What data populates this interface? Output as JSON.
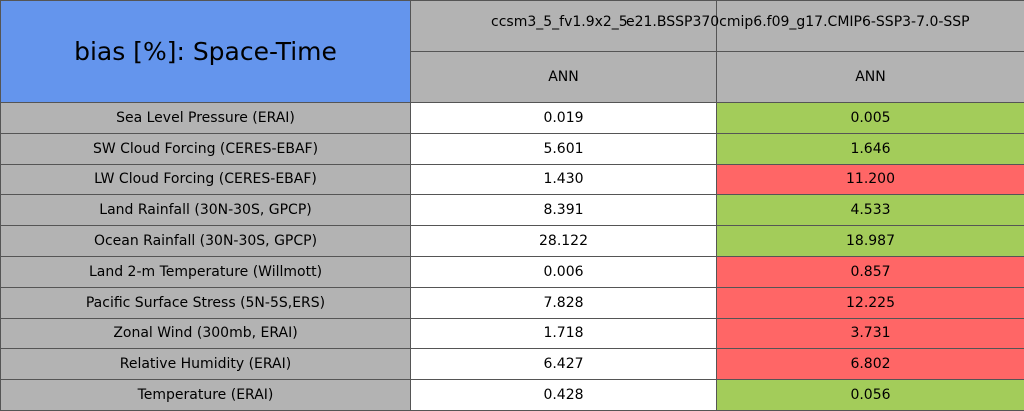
{
  "table": {
    "title": "bias [%]: Space-Time",
    "columns": [
      {
        "name": "ccsm3_5_fv1.9x2_5",
        "season": "ANN"
      },
      {
        "name": "e21.BSSP370cmip6.f09_g17.CMIP6-SSP3-7.0-SSP",
        "season": "ANN"
      }
    ],
    "rows": [
      {
        "label": "Sea Level Pressure (ERAI)",
        "cells": [
          "0.019",
          "0.005"
        ],
        "colors": [
          "#ffffff",
          "#a3cc5a"
        ]
      },
      {
        "label": "SW Cloud Forcing (CERES-EBAF)",
        "cells": [
          "5.601",
          "1.646"
        ],
        "colors": [
          "#ffffff",
          "#a3cc5a"
        ]
      },
      {
        "label": "LW Cloud Forcing (CERES-EBAF)",
        "cells": [
          "1.430",
          "11.200"
        ],
        "colors": [
          "#ffffff",
          "#ff6666"
        ]
      },
      {
        "label": "Land Rainfall (30N-30S, GPCP)",
        "cells": [
          "8.391",
          "4.533"
        ],
        "colors": [
          "#ffffff",
          "#a3cc5a"
        ]
      },
      {
        "label": "Ocean Rainfall (30N-30S, GPCP)",
        "cells": [
          "28.122",
          "18.987"
        ],
        "colors": [
          "#ffffff",
          "#a3cc5a"
        ]
      },
      {
        "label": "Land 2-m Temperature (Willmott)",
        "cells": [
          "0.006",
          "0.857"
        ],
        "colors": [
          "#ffffff",
          "#ff6666"
        ]
      },
      {
        "label": "Pacific Surface Stress (5N-5S,ERS)",
        "cells": [
          "7.828",
          "12.225"
        ],
        "colors": [
          "#ffffff",
          "#ff6666"
        ]
      },
      {
        "label": "Zonal Wind (300mb, ERAI)",
        "cells": [
          "1.718",
          "3.731"
        ],
        "colors": [
          "#ffffff",
          "#ff6666"
        ]
      },
      {
        "label": "Relative Humidity (ERAI)",
        "cells": [
          "6.427",
          "6.802"
        ],
        "colors": [
          "#ffffff",
          "#ff6666"
        ]
      },
      {
        "label": "Temperature (ERAI)",
        "cells": [
          "0.428",
          "0.056"
        ],
        "colors": [
          "#ffffff",
          "#a3cc5a"
        ]
      }
    ]
  }
}
